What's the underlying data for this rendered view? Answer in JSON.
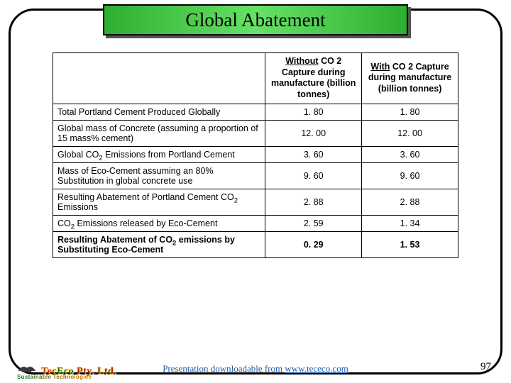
{
  "title": "Global Abatement",
  "colors": {
    "title_gradient_start": "#2eae2e",
    "title_gradient_mid": "#66e266",
    "title_gradient_end": "#2eae2e",
    "border": "#000000",
    "link": "#1a5aa8",
    "logo_tec": "#d83a00",
    "logo_eco": "#1a7f1a",
    "logo_pty": "#b02a00",
    "logo_shadow": "#f5d040",
    "sustain_green": "#0a7a2a",
    "sustain_orange": "#cc8800"
  },
  "table": {
    "header_col1": "",
    "header_col2_underlined": "Without",
    "header_col2_rest": " CO 2 Capture during manufacture (billion tonnes)",
    "header_col3_underlined": "With",
    "header_col3_rest": " CO 2 Capture during manufacture (billion tonnes)",
    "rows": [
      {
        "label_html": "Total Portland Cement Produced Globally",
        "v1": "1. 80",
        "v2": "1. 80",
        "bold": false
      },
      {
        "label_html": "Global mass of Concrete (assuming a proportion of 15 mass% cement)",
        "v1": "12. 00",
        "v2": "12. 00",
        "bold": false
      },
      {
        "label_html": "Global CO<sub>2</sub> Emissions from Portland Cement",
        "v1": "3. 60",
        "v2": "3. 60",
        "bold": false
      },
      {
        "label_html": "Mass of Eco-Cement assuming an 80% Substitution in global concrete use",
        "v1": "9. 60",
        "v2": "9. 60",
        "bold": false
      },
      {
        "label_html": "Resulting Abatement of Portland Cement CO<sub>2</sub> Emissions",
        "v1": "2. 88",
        "v2": "2. 88",
        "bold": false
      },
      {
        "label_html": "CO<sub>2</sub> Emissions released by Eco-Cement",
        "v1": "2. 59",
        "v2": "1. 34",
        "bold": false
      },
      {
        "label_html": "Resulting Abatement of CO<sub>2</sub> emissions by Substituting Eco-Cement",
        "v1": "0. 29",
        "v2": "1. 53",
        "bold": true
      }
    ]
  },
  "footer": {
    "logo_tec": "Tec",
    "logo_eco": "Eco",
    "logo_pty": " Pty. Ltd.",
    "sustain": "Sustainable Technologies",
    "center_prefix": "Presentation downloadable from ",
    "center_link": "www.tececo.com",
    "page": "97"
  }
}
